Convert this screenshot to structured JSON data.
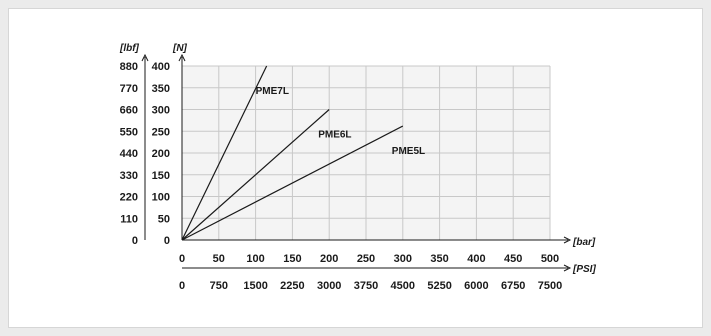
{
  "chart_data": {
    "type": "line",
    "title": "",
    "x_axis": {
      "primary_unit": "[bar]",
      "primary_ticks": [
        "0",
        "50",
        "100",
        "150",
        "200",
        "250",
        "300",
        "350",
        "400",
        "450",
        "500"
      ],
      "secondary_unit": "[PSI]",
      "secondary_ticks": [
        "0",
        "750",
        "1500",
        "2250",
        "3000",
        "3750",
        "4500",
        "5250",
        "6000",
        "6750",
        "7500"
      ],
      "range": [
        0,
        500
      ]
    },
    "y_axis": {
      "primary_unit": "[N]",
      "primary_ticks": [
        "0",
        "50",
        "100",
        "150",
        "200",
        "250",
        "300",
        "350",
        "400"
      ],
      "secondary_unit": "[lbf]",
      "secondary_ticks": [
        "0",
        "110",
        "220",
        "330",
        "440",
        "550",
        "660",
        "770",
        "880"
      ],
      "range": [
        0,
        400
      ]
    },
    "grid": true,
    "series": [
      {
        "name": "PME7L",
        "x": [
          0,
          115
        ],
        "y": [
          0,
          400
        ]
      },
      {
        "name": "PME6L",
        "x": [
          0,
          200
        ],
        "y": [
          0,
          300
        ]
      },
      {
        "name": "PME5L",
        "x": [
          0,
          300
        ],
        "y": [
          0,
          262
        ]
      }
    ],
    "colors": {
      "line": "#1a1a1a",
      "grid": "#c8c8c8",
      "plot_bg": "#f4f4f4"
    }
  }
}
